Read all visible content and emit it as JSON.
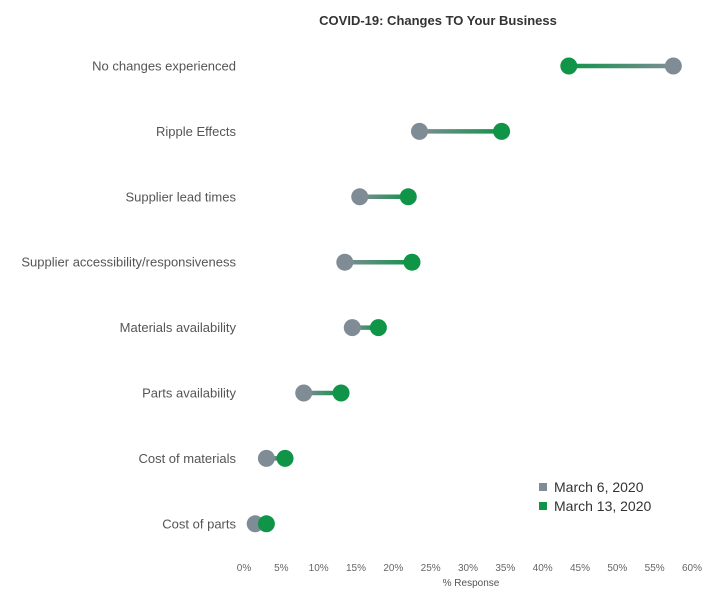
{
  "chart_data": {
    "type": "dumbbell",
    "title": "COVID-19: Changes TO Your Business",
    "xlabel": "% Response",
    "ylabel": "",
    "xlim": [
      0,
      60
    ],
    "x_ticks": [
      "0%",
      "5%",
      "10%",
      "15%",
      "20%",
      "25%",
      "30%",
      "35%",
      "40%",
      "45%",
      "50%",
      "55%",
      "60%"
    ],
    "categories": [
      "No changes experienced",
      "Ripple Effects",
      "Supplier lead times",
      "Supplier accessibility/responsiveness",
      "Materials availability",
      "Parts availability",
      "Cost of materials",
      "Cost of parts"
    ],
    "series": [
      {
        "name": "March 6, 2020",
        "color": "#7f8c96",
        "values": [
          57.5,
          23.5,
          15.5,
          13.5,
          14.5,
          8,
          3,
          1.5
        ]
      },
      {
        "name": "March 13, 2020",
        "color": "#0f9448",
        "values": [
          43.5,
          34.5,
          22,
          22.5,
          18,
          13,
          5.5,
          3
        ]
      }
    ],
    "legend_position": "bottom-right",
    "grid": false
  }
}
